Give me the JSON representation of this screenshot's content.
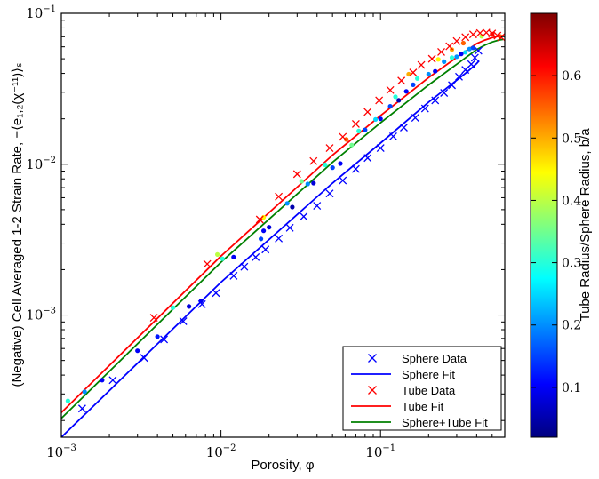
{
  "chart_data": {
    "type": "scatter",
    "xscale": "log",
    "yscale": "log",
    "xlim": [
      0.001,
      0.6
    ],
    "ylim": [
      0.000155,
      0.1
    ],
    "xlabel": "Porosity, φ",
    "ylabel": "(Negative) Cell Averaged 1-2 Strain Rate, −⟨e₁,₂(χ⁻¹¹)⟩ₛ",
    "x_ticks": [
      {
        "value": 0.001,
        "base": "10",
        "exp": "−3"
      },
      {
        "value": 0.01,
        "base": "10",
        "exp": "−2"
      },
      {
        "value": 0.1,
        "base": "10",
        "exp": "−1"
      }
    ],
    "y_ticks": [
      {
        "value": 0.001,
        "base": "10",
        "exp": "−3"
      },
      {
        "value": 0.01,
        "base": "10",
        "exp": "−2"
      },
      {
        "value": 0.1,
        "base": "10",
        "exp": "−1"
      }
    ],
    "colorbar": {
      "label": "Tube Radius/Sphere Radius, b/a",
      "range": [
        0.02,
        0.7
      ],
      "ticks": [
        "0.1",
        "0.2",
        "0.3",
        "0.4",
        "0.5",
        "0.6"
      ],
      "tick_values": [
        0.1,
        0.2,
        0.3,
        0.4,
        0.5,
        0.6
      ]
    },
    "legend": [
      {
        "label": "Sphere Data",
        "kind": "marker-x",
        "color": "#0000ff"
      },
      {
        "label": "Sphere Fit",
        "kind": "line",
        "color": "#0000ff"
      },
      {
        "label": "Tube Data",
        "kind": "marker-x",
        "color": "#ff0000"
      },
      {
        "label": "Tube Fit",
        "kind": "line",
        "color": "#ff0000"
      },
      {
        "label": "Sphere+Tube Fit",
        "kind": "line",
        "color": "#008000"
      }
    ],
    "legend_position": "lower-right",
    "series": [
      {
        "name": "Sphere Data",
        "marker": "x",
        "color": "#0000ff",
        "points": [
          [
            0.00135,
            0.00024
          ],
          [
            0.0021,
            0.00037
          ],
          [
            0.0033,
            0.00052
          ],
          [
            0.0044,
            0.00069
          ],
          [
            0.0058,
            0.00091
          ],
          [
            0.0076,
            0.00118
          ],
          [
            0.0093,
            0.0014
          ],
          [
            0.012,
            0.00182
          ],
          [
            0.014,
            0.00209
          ],
          [
            0.0165,
            0.00242
          ],
          [
            0.019,
            0.00272
          ],
          [
            0.023,
            0.00322
          ],
          [
            0.027,
            0.00379
          ],
          [
            0.033,
            0.0045
          ],
          [
            0.04,
            0.0053
          ],
          [
            0.048,
            0.0064
          ],
          [
            0.058,
            0.0078
          ],
          [
            0.07,
            0.0093
          ],
          [
            0.083,
            0.011
          ],
          [
            0.1,
            0.0128
          ],
          [
            0.12,
            0.0153
          ],
          [
            0.14,
            0.0175
          ],
          [
            0.165,
            0.0203
          ],
          [
            0.19,
            0.0234
          ],
          [
            0.22,
            0.0265
          ],
          [
            0.25,
            0.0297
          ],
          [
            0.28,
            0.0334
          ],
          [
            0.31,
            0.038
          ],
          [
            0.34,
            0.0422
          ],
          [
            0.37,
            0.046
          ],
          [
            0.39,
            0.0508
          ],
          [
            0.41,
            0.0565
          ]
        ]
      },
      {
        "name": "Tube Data",
        "marker": "x",
        "color": "#ff0000",
        "points": [
          [
            0.0038,
            0.00096
          ],
          [
            0.0082,
            0.00218
          ],
          [
            0.0175,
            0.0043
          ],
          [
            0.023,
            0.0061
          ],
          [
            0.03,
            0.0086
          ],
          [
            0.038,
            0.0105
          ],
          [
            0.048,
            0.0128
          ],
          [
            0.058,
            0.0152
          ],
          [
            0.07,
            0.0185
          ],
          [
            0.083,
            0.0222
          ],
          [
            0.098,
            0.0265
          ],
          [
            0.115,
            0.031
          ],
          [
            0.135,
            0.0358
          ],
          [
            0.16,
            0.0405
          ],
          [
            0.18,
            0.0455
          ],
          [
            0.21,
            0.05
          ],
          [
            0.24,
            0.0555
          ],
          [
            0.27,
            0.0605
          ],
          [
            0.3,
            0.0655
          ],
          [
            0.34,
            0.0695
          ],
          [
            0.38,
            0.0725
          ],
          [
            0.42,
            0.074
          ],
          [
            0.46,
            0.0745
          ],
          [
            0.5,
            0.0735
          ],
          [
            0.54,
            0.0712
          ],
          [
            0.57,
            0.0695
          ]
        ]
      },
      {
        "name": "Sphere Fit",
        "kind": "line",
        "color": "#0000ff",
        "points": [
          [
            0.001,
            0.000155
          ],
          [
            0.01,
            0.00165
          ],
          [
            0.05,
            0.0075
          ],
          [
            0.1,
            0.0138
          ],
          [
            0.2,
            0.0258
          ],
          [
            0.3,
            0.036
          ],
          [
            0.35,
            0.041
          ],
          [
            0.4,
            0.0465
          ],
          [
            0.415,
            0.0485
          ]
        ]
      },
      {
        "name": "Tube Fit",
        "kind": "line",
        "color": "#ff0000",
        "points": [
          [
            0.001,
            0.000226
          ],
          [
            0.01,
            0.00246
          ],
          [
            0.05,
            0.0115
          ],
          [
            0.1,
            0.021
          ],
          [
            0.2,
            0.0375
          ],
          [
            0.3,
            0.051
          ],
          [
            0.4,
            0.063
          ],
          [
            0.45,
            0.0665
          ],
          [
            0.5,
            0.069
          ],
          [
            0.55,
            0.0705
          ],
          [
            0.585,
            0.0712
          ]
        ]
      },
      {
        "name": "Sphere+Tube Fit",
        "kind": "line",
        "color": "#008000",
        "points": [
          [
            0.001,
            0.000207
          ],
          [
            0.01,
            0.00224
          ],
          [
            0.05,
            0.0103
          ],
          [
            0.1,
            0.0188
          ],
          [
            0.2,
            0.0335
          ],
          [
            0.3,
            0.046
          ],
          [
            0.4,
            0.0575
          ],
          [
            0.45,
            0.0615
          ],
          [
            0.5,
            0.0645
          ],
          [
            0.55,
            0.0665
          ],
          [
            0.585,
            0.0672
          ]
        ]
      },
      {
        "name": "Colored Data",
        "marker": "dot",
        "color_by": "b/a",
        "points": [
          [
            0.0011,
            0.00027,
            0.3
          ],
          [
            0.0014,
            0.00031,
            0.2
          ],
          [
            0.0018,
            0.00037,
            0.1
          ],
          [
            0.003,
            0.00058,
            0.1
          ],
          [
            0.004,
            0.00072,
            0.12
          ],
          [
            0.005,
            0.00112,
            0.3
          ],
          [
            0.0063,
            0.00114,
            0.08
          ],
          [
            0.0075,
            0.00124,
            0.1
          ],
          [
            0.0095,
            0.00252,
            0.4
          ],
          [
            0.0102,
            0.00236,
            0.3
          ],
          [
            0.012,
            0.00242,
            0.1
          ],
          [
            0.0185,
            0.00445,
            0.45
          ],
          [
            0.0178,
            0.0032,
            0.15
          ],
          [
            0.0185,
            0.00362,
            0.1
          ],
          [
            0.02,
            0.00382,
            0.08
          ],
          [
            0.026,
            0.0055,
            0.2
          ],
          [
            0.028,
            0.0052,
            0.05
          ],
          [
            0.032,
            0.0077,
            0.35
          ],
          [
            0.035,
            0.0074,
            0.2
          ],
          [
            0.038,
            0.0075,
            0.08
          ],
          [
            0.045,
            0.0099,
            0.3
          ],
          [
            0.05,
            0.0095,
            0.15
          ],
          [
            0.056,
            0.0101,
            0.1
          ],
          [
            0.061,
            0.0146,
            0.55
          ],
          [
            0.066,
            0.0134,
            0.35
          ],
          [
            0.073,
            0.0166,
            0.3
          ],
          [
            0.08,
            0.0169,
            0.15
          ],
          [
            0.093,
            0.0198,
            0.25
          ],
          [
            0.1,
            0.02,
            0.1
          ],
          [
            0.115,
            0.0242,
            0.15
          ],
          [
            0.124,
            0.028,
            0.3
          ],
          [
            0.13,
            0.0265,
            0.05
          ],
          [
            0.145,
            0.0304,
            0.1
          ],
          [
            0.16,
            0.0336,
            0.15
          ],
          [
            0.17,
            0.037,
            0.3
          ],
          [
            0.2,
            0.0395,
            0.2
          ],
          [
            0.22,
            0.0413,
            0.1
          ],
          [
            0.25,
            0.0478,
            0.2
          ],
          [
            0.28,
            0.0508,
            0.3
          ],
          [
            0.3,
            0.0516,
            0.2
          ],
          [
            0.32,
            0.0538,
            0.1
          ],
          [
            0.34,
            0.0552,
            0.25
          ],
          [
            0.36,
            0.058,
            0.2
          ],
          [
            0.38,
            0.0591,
            0.15
          ],
          [
            0.15,
            0.0395,
            0.5
          ],
          [
            0.23,
            0.0495,
            0.45
          ],
          [
            0.28,
            0.0575,
            0.5
          ],
          [
            0.33,
            0.0635,
            0.55
          ],
          [
            0.43,
            0.0705,
            0.4
          ],
          [
            0.5,
            0.073,
            0.6
          ],
          [
            0.56,
            0.0705,
            0.55
          ]
        ]
      }
    ]
  }
}
